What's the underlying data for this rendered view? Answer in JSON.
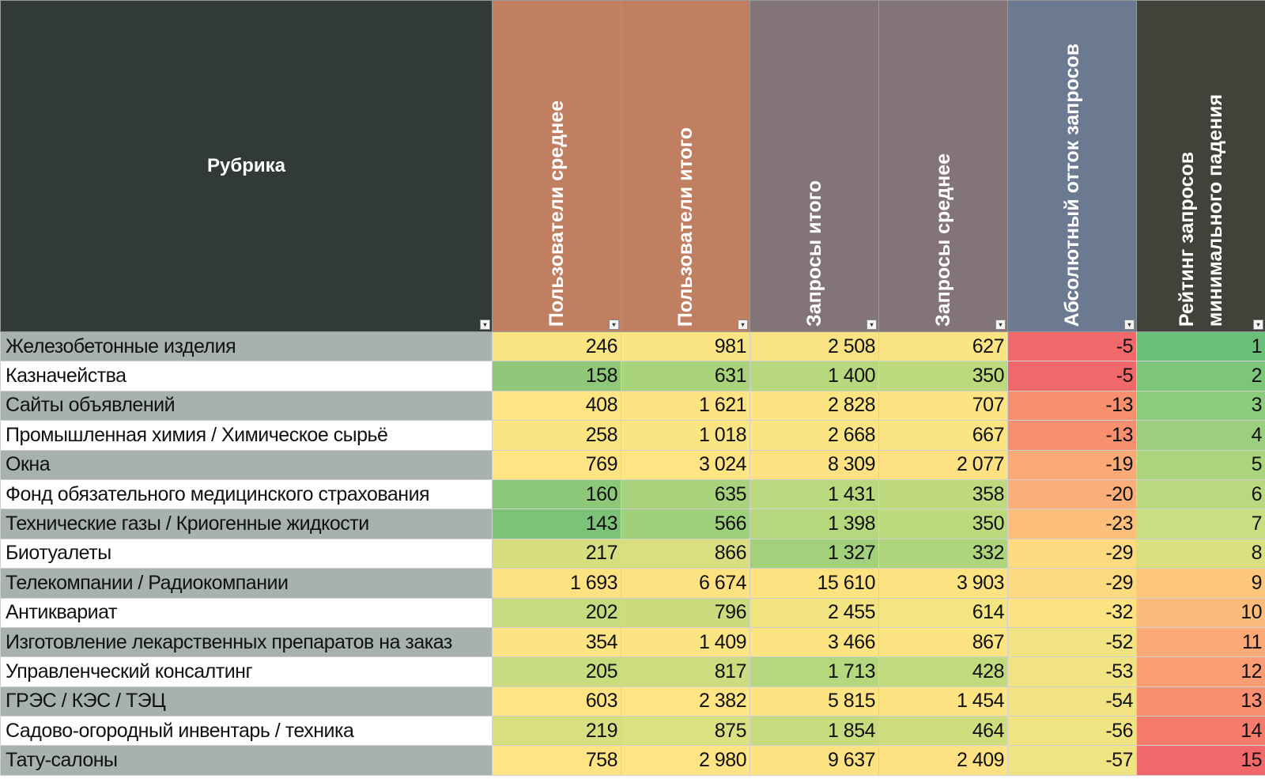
{
  "header": {
    "rubric": "Рубрика",
    "columns": [
      {
        "label": "Пользователи среднее",
        "color": "#c17f62"
      },
      {
        "label": "Пользователи итого",
        "color": "#c17f62"
      },
      {
        "label": "Запросы итого",
        "color": "#837577"
      },
      {
        "label": "Запросы среднее",
        "color": "#837577"
      },
      {
        "label": "Абсолютный отток запросов",
        "color": "#6b7a90"
      },
      {
        "label": "Рейтинг запросов\nминимального падения",
        "color": "#3f4339"
      }
    ],
    "filter_icon": "dropdown-arrow-icon"
  },
  "rows": [
    {
      "name": "Железобетонные изделия",
      "values": [
        "246",
        "981",
        "2 508",
        "627",
        "-5",
        "1"
      ],
      "colors": [
        "#fbe482",
        "#fbe482",
        "#f9e281",
        "#fbe482",
        "#f0686a",
        "#6ac07a"
      ]
    },
    {
      "name": "Казначейства",
      "values": [
        "158",
        "631",
        "1 400",
        "350",
        "-5",
        "2"
      ],
      "colors": [
        "#8fc879",
        "#aad47c",
        "#b7d87d",
        "#bcd97e",
        "#f0686a",
        "#7cc57b"
      ]
    },
    {
      "name": "Сайты объявлений",
      "values": [
        "408",
        "1 621",
        "2 828",
        "707",
        "-13",
        "3"
      ],
      "colors": [
        "#fee482",
        "#fee382",
        "#fde482",
        "#fde482",
        "#f8906f",
        "#8cca7c"
      ]
    },
    {
      "name": "Промышленная химия / Химическое сырьё",
      "values": [
        "258",
        "1 018",
        "2 668",
        "667",
        "-13",
        "4"
      ],
      "colors": [
        "#fbe482",
        "#fbe482",
        "#fbe482",
        "#fbe482",
        "#f8906f",
        "#9bce7d"
      ]
    },
    {
      "name": "Окна",
      "values": [
        "769",
        "3 024",
        "8 309",
        "2 077",
        "-19",
        "5"
      ],
      "colors": [
        "#fee482",
        "#fee482",
        "#fde282",
        "#fde182",
        "#fbaa77",
        "#aad47e"
      ]
    },
    {
      "name": "Фонд обязательного медицинского страхования",
      "values": [
        "160",
        "635",
        "1 431",
        "358",
        "-20",
        "6"
      ],
      "colors": [
        "#8dc879",
        "#a8d37c",
        "#bad87d",
        "#bfda7e",
        "#fbae78",
        "#b9d87f"
      ]
    },
    {
      "name": "Технические газы / Криогенные жидкости",
      "values": [
        "143",
        "566",
        "1 398",
        "350",
        "-23",
        "7"
      ],
      "colors": [
        "#7cc278",
        "#9fd07b",
        "#b5d87d",
        "#bcd97e",
        "#fcbf7b",
        "#cadd80"
      ]
    },
    {
      "name": "Биотуалеты",
      "values": [
        "217",
        "866",
        "1 327",
        "332",
        "-29",
        "8"
      ],
      "colors": [
        "#d6de80",
        "#d9df80",
        "#a3d17b",
        "#afd57c",
        "#fcda80",
        "#dae080"
      ]
    },
    {
      "name": "Телекомпании / Радиокомпании",
      "values": [
        "1 693",
        "6 674",
        "15 610",
        "3 903",
        "-29",
        "9"
      ],
      "colors": [
        "#fee282",
        "#fee282",
        "#fde282",
        "#fde282",
        "#fcda80",
        "#fcc67c"
      ]
    },
    {
      "name": "Антиквариат",
      "values": [
        "202",
        "796",
        "2 455",
        "614",
        "-32",
        "10"
      ],
      "colors": [
        "#c6da7e",
        "#cbdc7f",
        "#f2e481",
        "#f3e581",
        "#fde382",
        "#fbbb7a"
      ]
    },
    {
      "name": "Изготовление лекарственных препаратов на заказ",
      "values": [
        "354",
        "1 409",
        "3 466",
        "867",
        "-52",
        "11"
      ],
      "colors": [
        "#fde482",
        "#fde482",
        "#fde482",
        "#fde482",
        "#f1e381",
        "#faa977"
      ]
    },
    {
      "name": "Управленческий консалтинг",
      "values": [
        "205",
        "817",
        "1 713",
        "428",
        "-53",
        "12"
      ],
      "colors": [
        "#c8db7f",
        "#ccdc7f",
        "#b5d77d",
        "#c1da7e",
        "#f1e381",
        "#fa9c74"
      ]
    },
    {
      "name": "ГРЭС / КЭС / ТЭЦ",
      "values": [
        "603",
        "2 382",
        "5 815",
        "1 454",
        "-54",
        "13"
      ],
      "colors": [
        "#fee482",
        "#fee482",
        "#fde382",
        "#fde382",
        "#f1e381",
        "#f88f70"
      ]
    },
    {
      "name": "Садово-огородный инвентарь / техника",
      "values": [
        "219",
        "875",
        "1 854",
        "464",
        "-56",
        "14"
      ],
      "colors": [
        "#d7df80",
        "#dbe080",
        "#c9db7f",
        "#cfdd7f",
        "#f0e381",
        "#f57b6d"
      ]
    },
    {
      "name": "Тату-салоны",
      "values": [
        "758",
        "2 980",
        "9 637",
        "2 409",
        "-57",
        "15"
      ],
      "colors": [
        "#fee482",
        "#fee482",
        "#fde282",
        "#fde182",
        "#f0e381",
        "#f0686a"
      ]
    }
  ]
}
